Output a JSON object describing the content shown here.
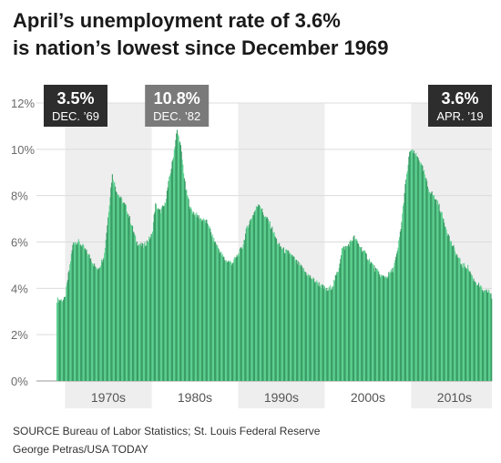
{
  "title": {
    "line1": "April’s unemployment rate of 3.6%",
    "line2": "is nation’s lowest since December 1969"
  },
  "footer": {
    "source": "SOURCE Bureau of Labor Statistics; St. Louis Federal Reserve",
    "credit": "George Petras/USA TODAY"
  },
  "colors": {
    "bar_light": "#5ccf8f",
    "bar_dark": "#3a9d66",
    "callout_dark": "#2d2d2d",
    "callout_gray": "#7a7a7a",
    "grid": "#dcdcdc"
  },
  "chart_data": {
    "type": "area",
    "title": "April’s unemployment rate of 3.6% is nation’s lowest since December 1969",
    "xlabel": "",
    "ylabel": "",
    "x_range": [
      1969.0,
      2019.33
    ],
    "ylim": [
      0,
      12
    ],
    "y_ticks": [
      0,
      2,
      4,
      6,
      8,
      10,
      12
    ],
    "y_tick_labels": [
      "0%",
      "2%",
      "4%",
      "6%",
      "8%",
      "10%",
      "12%"
    ],
    "x_tick_labels": [
      {
        "label": "1970s",
        "center": 1975
      },
      {
        "label": "1980s",
        "center": 1985
      },
      {
        "label": "1990s",
        "center": 1995
      },
      {
        "label": "2000s",
        "center": 2005
      },
      {
        "label": "2010s",
        "center": 2015
      }
    ],
    "decade_bands": [
      [
        1970,
        1980
      ],
      [
        1990,
        2000
      ],
      [
        2010,
        2019.33
      ]
    ],
    "grid": true,
    "series": [
      {
        "points": [
          [
            1969.0,
            3.5
          ],
          [
            1969.9,
            3.5
          ],
          [
            1970.3,
            4.5
          ],
          [
            1970.9,
            6.0
          ],
          [
            1971.5,
            6.0
          ],
          [
            1972.0,
            5.8
          ],
          [
            1972.9,
            5.3
          ],
          [
            1973.6,
            4.8
          ],
          [
            1974.0,
            5.0
          ],
          [
            1974.5,
            5.5
          ],
          [
            1974.9,
            7.0
          ],
          [
            1975.4,
            8.9
          ],
          [
            1975.9,
            8.2
          ],
          [
            1976.5,
            7.8
          ],
          [
            1977.0,
            7.5
          ],
          [
            1977.6,
            6.8
          ],
          [
            1978.2,
            6.0
          ],
          [
            1979.0,
            5.8
          ],
          [
            1979.6,
            6.1
          ],
          [
            1980.0,
            6.3
          ],
          [
            1980.4,
            7.6
          ],
          [
            1980.9,
            7.3
          ],
          [
            1981.5,
            7.6
          ],
          [
            1981.9,
            8.5
          ],
          [
            1982.4,
            9.5
          ],
          [
            1982.9,
            10.8
          ],
          [
            1983.3,
            10.2
          ],
          [
            1983.9,
            8.3
          ],
          [
            1984.5,
            7.4
          ],
          [
            1985.0,
            7.2
          ],
          [
            1985.7,
            7.0
          ],
          [
            1986.5,
            6.8
          ],
          [
            1987.0,
            6.2
          ],
          [
            1987.6,
            5.8
          ],
          [
            1988.0,
            5.5
          ],
          [
            1988.5,
            5.2
          ],
          [
            1989.3,
            5.1
          ],
          [
            1989.9,
            5.4
          ],
          [
            1990.5,
            5.8
          ],
          [
            1991.0,
            6.6
          ],
          [
            1991.6,
            7.1
          ],
          [
            1992.4,
            7.7
          ],
          [
            1992.9,
            7.2
          ],
          [
            1993.5,
            6.9
          ],
          [
            1994.0,
            6.5
          ],
          [
            1994.6,
            5.9
          ],
          [
            1995.4,
            5.6
          ],
          [
            1996.0,
            5.5
          ],
          [
            1996.6,
            5.2
          ],
          [
            1997.3,
            4.9
          ],
          [
            1998.0,
            4.6
          ],
          [
            1998.6,
            4.4
          ],
          [
            1999.3,
            4.2
          ],
          [
            2000.3,
            3.9
          ],
          [
            2000.9,
            4.1
          ],
          [
            2001.6,
            4.8
          ],
          [
            2002.0,
            5.7
          ],
          [
            2002.6,
            5.8
          ],
          [
            2003.4,
            6.2
          ],
          [
            2003.9,
            5.9
          ],
          [
            2004.5,
            5.6
          ],
          [
            2005.2,
            5.2
          ],
          [
            2005.9,
            4.8
          ],
          [
            2006.6,
            4.5
          ],
          [
            2007.2,
            4.5
          ],
          [
            2007.9,
            4.8
          ],
          [
            2008.4,
            5.5
          ],
          [
            2008.9,
            6.8
          ],
          [
            2009.3,
            8.3
          ],
          [
            2009.9,
            10.0
          ],
          [
            2010.4,
            9.8
          ],
          [
            2010.9,
            9.6
          ],
          [
            2011.5,
            9.0
          ],
          [
            2012.0,
            8.3
          ],
          [
            2012.6,
            8.0
          ],
          [
            2013.2,
            7.6
          ],
          [
            2013.9,
            6.8
          ],
          [
            2014.5,
            6.1
          ],
          [
            2015.2,
            5.5
          ],
          [
            2015.9,
            5.0
          ],
          [
            2016.6,
            4.9
          ],
          [
            2017.2,
            4.4
          ],
          [
            2017.9,
            4.1
          ],
          [
            2018.5,
            3.8
          ],
          [
            2019.0,
            3.9
          ],
          [
            2019.33,
            3.6
          ]
        ]
      }
    ],
    "annotations": [
      {
        "value": "3.5%",
        "date": "DEC. ’69",
        "x": 1969.92,
        "y": 3.5,
        "style": "dark"
      },
      {
        "value": "10.8%",
        "date": "DEC. ’82",
        "x": 1982.92,
        "y": 10.8,
        "style": "gray"
      },
      {
        "value": "3.6%",
        "date": "APR. ’19",
        "x": 2019.33,
        "y": 3.6,
        "style": "dark"
      }
    ]
  }
}
